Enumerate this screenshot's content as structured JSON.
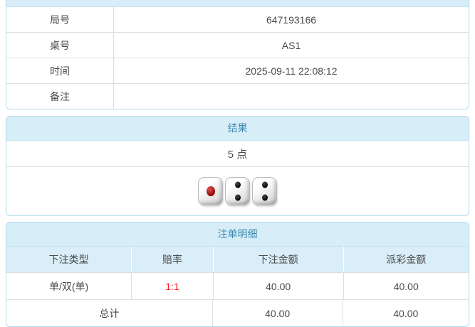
{
  "info_table": {
    "rows": [
      {
        "label": "局号",
        "value": "647193166"
      },
      {
        "label": "桌号",
        "value": "AS1"
      },
      {
        "label": "时间",
        "value": "2025-09-11 22:08:12"
      },
      {
        "label": "备注",
        "value": ""
      }
    ]
  },
  "result_panel": {
    "title": "结果",
    "points": "5 点",
    "dice": [
      1,
      2,
      2
    ]
  },
  "bets_panel": {
    "title": "注单明细",
    "columns": [
      "下注类型",
      "赔率",
      "下注金额",
      "派彩金额"
    ],
    "rows": [
      {
        "type": "单/双(单)",
        "odds": "1:1",
        "bet": "40.00",
        "payout": "40.00"
      }
    ],
    "total": {
      "label": "总计",
      "bet": "40.00",
      "payout": "40.00"
    }
  },
  "colors": {
    "panel_border": "#b3dcee",
    "heading_bg": "#d7edf7",
    "heading_text": "#3a87ad",
    "table_header_bg": "#d9eef8",
    "row_border": "#dddddd",
    "body_text": "#4a4a4a",
    "odds_red": "#f5222d",
    "die_pip_red": "#8f0000",
    "die_pip_black": "#1a1a1a"
  }
}
